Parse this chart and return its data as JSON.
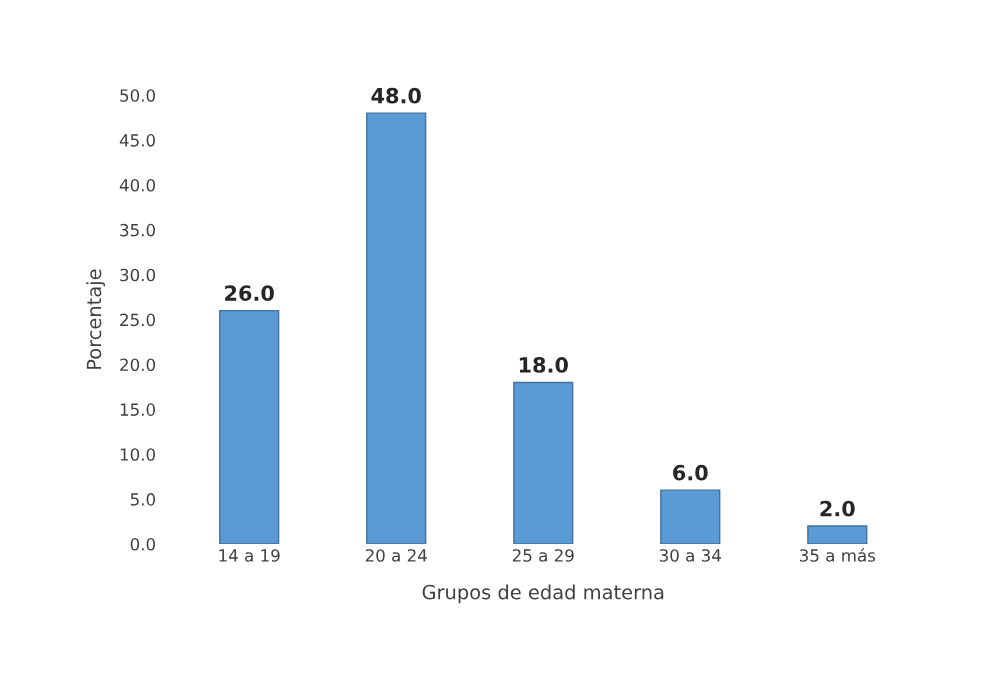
{
  "chart_data": {
    "type": "bar",
    "xlabel": "Grupos de edad materna",
    "ylabel": "Porcentaje",
    "categories": [
      "14 a 19",
      "20 a 24",
      "25 a 29",
      "30 a 34",
      "35 a más"
    ],
    "values": [
      26.0,
      48.0,
      18.0,
      6.0,
      2.0
    ],
    "value_labels": [
      "26.0",
      "48.0",
      "18.0",
      "6.0",
      "2.0"
    ],
    "color": "#5b9bd5",
    "ylim": [
      0,
      50
    ],
    "yticks": [
      {
        "value": 0,
        "label": "0.0"
      },
      {
        "value": 5,
        "label": "5.0"
      },
      {
        "value": 10,
        "label": "10.0"
      },
      {
        "value": 15,
        "label": "15.0"
      },
      {
        "value": 20,
        "label": "20.0"
      },
      {
        "value": 25,
        "label": "25.0"
      },
      {
        "value": 30,
        "label": "30.0"
      },
      {
        "value": 35,
        "label": "35.0"
      },
      {
        "value": 40,
        "label": "40.0"
      },
      {
        "value": 45,
        "label": "45.0"
      },
      {
        "value": 50,
        "label": "50.0"
      }
    ],
    "grid": false,
    "legend": false
  }
}
